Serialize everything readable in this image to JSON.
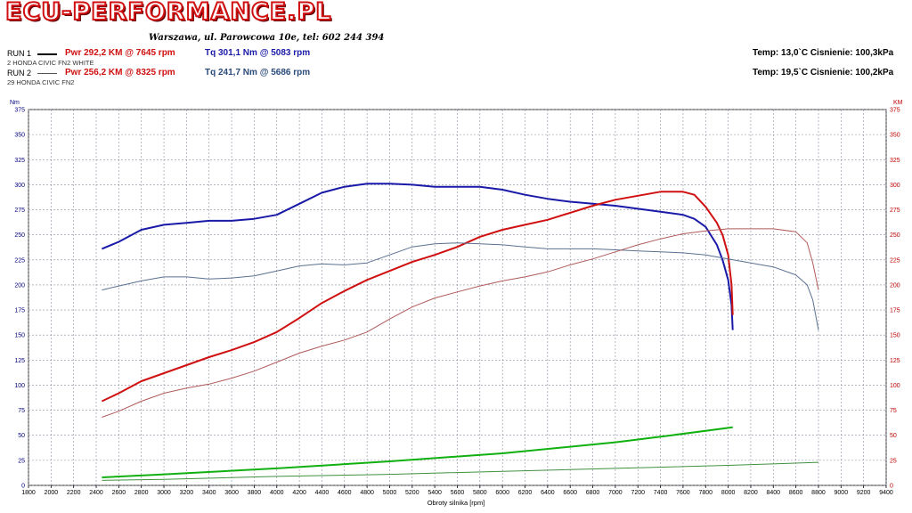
{
  "header": {
    "logo_text": "ECU-PERFORMANCE.PL",
    "address": "Warszawa, ul. Parowcowa 10e, tel: 602 244 394"
  },
  "runs": [
    {
      "label": "RUN 1",
      "name": "2 HONDA CIVIC FN2 WHITE",
      "pwr": "Pwr  292,2 KM @ 7645 rpm",
      "tq": "Tq  301,1 Nm @ 5083 rpm",
      "conditions": "Temp: 13,0`C   Cisnienie: 100,3kPa"
    },
    {
      "label": "RUN 2",
      "name": "29 HONDA CIVIC FN2",
      "pwr": "Pwr  256,2 KM @ 8325 rpm",
      "tq": "Tq  241,7 Nm @ 5686 rpm",
      "conditions": "Temp: 19,5`C   Cisnienie: 100,2kPa"
    }
  ],
  "colors": {
    "run1_power": "#d01010",
    "run1_torque": "#1a1aa8",
    "run2_power": "#b05a5a",
    "run2_torque": "#5a7090",
    "run1_loss": "#10b010",
    "run2_loss": "#409040",
    "grid": "#8a8aa0",
    "axis_left": "#000080",
    "axis_right": "#c00000"
  },
  "chart_data": {
    "type": "line",
    "xlabel": "Obroty silnika [rpm]",
    "ylabel_left": "Nm",
    "ylabel_right": "KM",
    "xlim": [
      1800,
      9400
    ],
    "ylim_left": [
      0,
      375
    ],
    "ylim_right": [
      0,
      375
    ],
    "x_ticks": [
      1800,
      2000,
      2200,
      2400,
      2600,
      2800,
      3000,
      3200,
      3400,
      3600,
      3800,
      4000,
      4200,
      4400,
      4600,
      4800,
      5000,
      5200,
      5400,
      5600,
      5800,
      6000,
      6200,
      6400,
      6600,
      6800,
      7000,
      7200,
      7400,
      7600,
      7800,
      8000,
      8200,
      8400,
      8600,
      8800,
      9000,
      9200,
      9400
    ],
    "y_ticks": [
      0,
      25,
      50,
      75,
      100,
      125,
      150,
      175,
      200,
      225,
      250,
      275,
      300,
      325,
      350,
      375
    ],
    "grid": true,
    "series": [
      {
        "axis": "left",
        "color_key": "run1_torque",
        "width": 2,
        "x": [
          2450,
          2600,
          2800,
          3000,
          3200,
          3400,
          3600,
          3800,
          4000,
          4200,
          4400,
          4600,
          4800,
          5000,
          5200,
          5400,
          5600,
          5800,
          6000,
          6200,
          6400,
          6600,
          6800,
          7000,
          7200,
          7400,
          7600,
          7700,
          7800,
          7900,
          7950,
          8000,
          8030,
          8040
        ],
        "y": [
          236,
          243,
          255,
          260,
          262,
          264,
          264,
          266,
          270,
          281,
          292,
          298,
          301,
          301,
          300,
          298,
          298,
          298,
          295,
          290,
          286,
          283,
          281,
          279,
          276,
          273,
          270,
          266,
          258,
          240,
          225,
          205,
          180,
          155
        ]
      },
      {
        "axis": "right",
        "color_key": "run1_power",
        "width": 2,
        "x": [
          2450,
          2600,
          2800,
          3000,
          3200,
          3400,
          3600,
          3800,
          4000,
          4200,
          4400,
          4600,
          4800,
          5000,
          5200,
          5400,
          5600,
          5800,
          6000,
          6200,
          6400,
          6600,
          6800,
          7000,
          7200,
          7400,
          7600,
          7700,
          7800,
          7900,
          7950,
          8000,
          8030,
          8040
        ],
        "y": [
          84,
          92,
          104,
          112,
          120,
          128,
          135,
          143,
          153,
          167,
          182,
          194,
          205,
          214,
          223,
          230,
          238,
          248,
          255,
          260,
          265,
          272,
          279,
          285,
          289,
          293,
          293,
          290,
          278,
          262,
          250,
          230,
          200,
          170
        ]
      },
      {
        "axis": "left",
        "color_key": "run2_torque",
        "width": 1,
        "x": [
          2450,
          2600,
          2800,
          3000,
          3200,
          3400,
          3600,
          3800,
          4000,
          4200,
          4400,
          4600,
          4800,
          5000,
          5200,
          5400,
          5600,
          5800,
          6000,
          6200,
          6400,
          6600,
          6800,
          7000,
          7200,
          7400,
          7600,
          7800,
          8000,
          8200,
          8400,
          8600,
          8700,
          8750,
          8800
        ],
        "y": [
          195,
          199,
          204,
          208,
          208,
          206,
          207,
          209,
          214,
          219,
          221,
          220,
          222,
          230,
          238,
          241,
          242,
          241,
          240,
          238,
          236,
          236,
          236,
          235,
          234,
          233,
          232,
          230,
          226,
          222,
          218,
          210,
          200,
          185,
          155
        ]
      },
      {
        "axis": "right",
        "color_key": "run2_power",
        "width": 1,
        "x": [
          2450,
          2600,
          2800,
          3000,
          3200,
          3400,
          3600,
          3800,
          4000,
          4200,
          4400,
          4600,
          4800,
          5000,
          5200,
          5400,
          5600,
          5800,
          6000,
          6200,
          6400,
          6600,
          6800,
          7000,
          7200,
          7400,
          7600,
          7800,
          8000,
          8200,
          8400,
          8600,
          8700,
          8750,
          8800
        ],
        "y": [
          68,
          74,
          84,
          92,
          97,
          101,
          107,
          114,
          123,
          132,
          139,
          145,
          153,
          166,
          178,
          187,
          193,
          199,
          204,
          208,
          213,
          220,
          226,
          233,
          240,
          246,
          251,
          254,
          256,
          256,
          256,
          253,
          242,
          222,
          195
        ]
      },
      {
        "axis": "right",
        "color_key": "run1_loss",
        "width": 2,
        "x": [
          2450,
          3000,
          4000,
          5000,
          6000,
          7000,
          7500,
          8040
        ],
        "y": [
          8,
          11,
          17,
          24,
          32,
          43,
          50,
          58
        ]
      },
      {
        "axis": "right",
        "color_key": "run2_loss",
        "width": 1,
        "x": [
          2450,
          3000,
          4000,
          5000,
          6000,
          7000,
          8000,
          8800
        ],
        "y": [
          5,
          6,
          9,
          11,
          14,
          17,
          20,
          23
        ]
      }
    ]
  }
}
